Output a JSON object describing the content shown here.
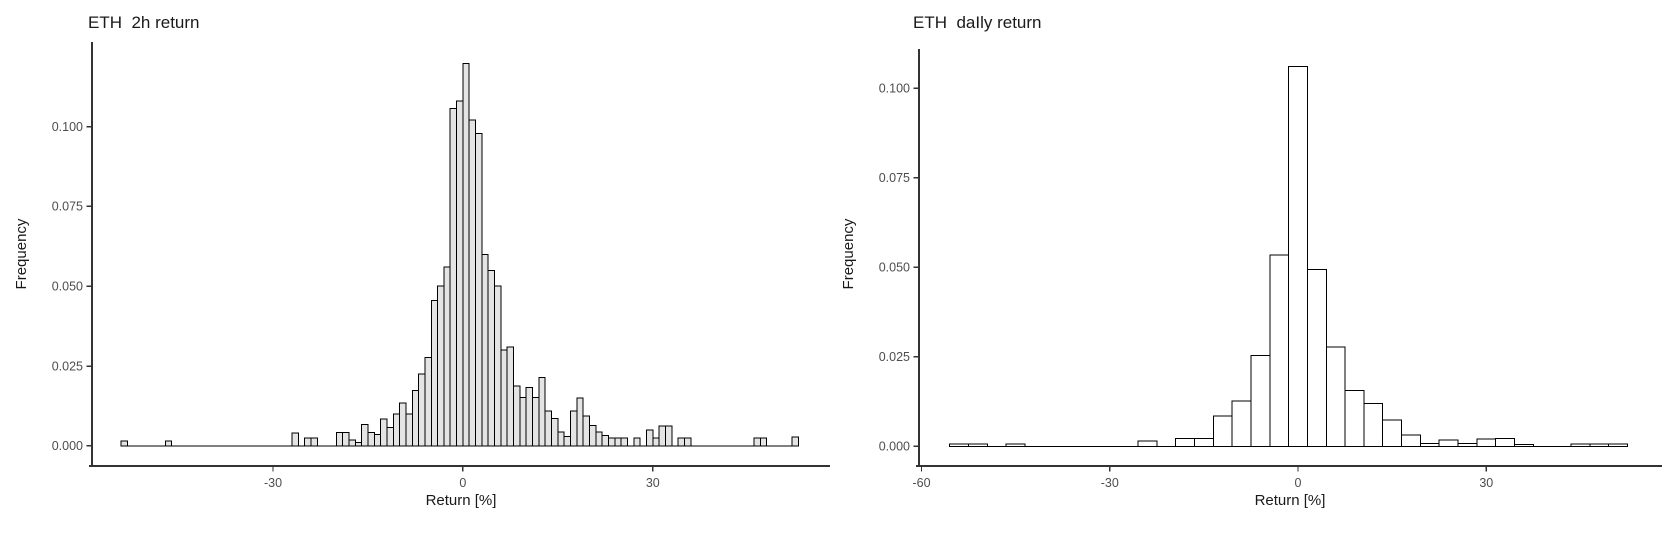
{
  "page": {
    "background": "#ffffff"
  },
  "styles": {
    "axis_line_color": "#333333",
    "tick_mark_color": "#333333",
    "tick_label_color": "#4d4d4d",
    "title_color": "#1a1a1a",
    "left_bar_fill": "#e4e4e4",
    "right_bar_fill": "#ffffff",
    "bar_stroke": "#000000"
  },
  "chart_data": [
    {
      "type": "bar",
      "subtype": "histogram",
      "title": "ETH  2h return",
      "xlabel": "Return [%]",
      "ylabel": "Frequency",
      "bin_width": 1,
      "xlim": [
        -58.6,
        58
      ],
      "ylim": [
        -0.0063,
        0.1265
      ],
      "grid": false,
      "legend": "none",
      "x_ticks": [
        {
          "v": -30,
          "label": "-30"
        },
        {
          "v": 0,
          "label": "0"
        },
        {
          "v": 30,
          "label": "30"
        }
      ],
      "y_ticks": [
        {
          "v": 0,
          "label": "0.000"
        },
        {
          "v": 0.025,
          "label": "0.025"
        },
        {
          "v": 0.05,
          "label": "0.050"
        },
        {
          "v": 0.075,
          "label": "0.075"
        },
        {
          "v": 0.1,
          "label": "0.100"
        }
      ],
      "baseline_span": [
        -54,
        53
      ],
      "bins": [
        [
          -54,
          0.0016
        ],
        [
          -47,
          0.0016
        ],
        [
          -27,
          0.0041
        ],
        [
          -25,
          0.0024
        ],
        [
          -24,
          0.0024
        ],
        [
          -20,
          0.0042
        ],
        [
          -19,
          0.0042
        ],
        [
          -18,
          0.0018
        ],
        [
          -17,
          0.0011
        ],
        [
          -16,
          0.0067
        ],
        [
          -15,
          0.0042
        ],
        [
          -14,
          0.0035
        ],
        [
          -13,
          0.0084
        ],
        [
          -12,
          0.0058
        ],
        [
          -11,
          0.01
        ],
        [
          -10,
          0.0135
        ],
        [
          -9,
          0.01
        ],
        [
          -8,
          0.0173
        ],
        [
          -7,
          0.0225
        ],
        [
          -6,
          0.0277
        ],
        [
          -5,
          0.0455
        ],
        [
          -4,
          0.05
        ],
        [
          -3,
          0.056
        ],
        [
          -2,
          0.1056
        ],
        [
          -1,
          0.108
        ],
        [
          0,
          0.1197
        ],
        [
          1,
          0.102
        ],
        [
          2,
          0.0979
        ],
        [
          3,
          0.06
        ],
        [
          4,
          0.055
        ],
        [
          5,
          0.05
        ],
        [
          6,
          0.03
        ],
        [
          7,
          0.031
        ],
        [
          8,
          0.0188
        ],
        [
          9,
          0.0152
        ],
        [
          10,
          0.0183
        ],
        [
          11,
          0.0152
        ],
        [
          12,
          0.0214
        ],
        [
          13,
          0.011
        ],
        [
          14,
          0.0085
        ],
        [
          15,
          0.0043
        ],
        [
          16,
          0.003
        ],
        [
          17,
          0.011
        ],
        [
          18,
          0.015
        ],
        [
          19,
          0.0093
        ],
        [
          20,
          0.0064
        ],
        [
          21,
          0.0043
        ],
        [
          22,
          0.0032
        ],
        [
          23,
          0.0025
        ],
        [
          24,
          0.0025
        ],
        [
          25,
          0.0025
        ],
        [
          27,
          0.0025
        ],
        [
          29,
          0.005
        ],
        [
          30,
          0.0025
        ],
        [
          31,
          0.0062
        ],
        [
          32,
          0.0062
        ],
        [
          34,
          0.0025
        ],
        [
          35,
          0.0025
        ],
        [
          46,
          0.0025
        ],
        [
          47,
          0.0025
        ],
        [
          52,
          0.0028
        ]
      ]
    },
    {
      "type": "bar",
      "subtype": "histogram",
      "title": "ETH  daIly return",
      "xlabel": "Return [%]",
      "ylabel": "Frequency",
      "bin_width": 3,
      "xlim": [
        -60.4,
        58
      ],
      "ylim": [
        -0.0055,
        0.111
      ],
      "grid": false,
      "legend": "none",
      "x_ticks": [
        {
          "v": -60,
          "label": "-60"
        },
        {
          "v": -30,
          "label": "-30"
        },
        {
          "v": 0,
          "label": "0"
        },
        {
          "v": 30,
          "label": "30"
        }
      ],
      "y_ticks": [
        {
          "v": 0,
          "label": "0.000"
        },
        {
          "v": 0.025,
          "label": "0.025"
        },
        {
          "v": 0.05,
          "label": "0.050"
        },
        {
          "v": 0.075,
          "label": "0.075"
        },
        {
          "v": 0.1,
          "label": "0.100"
        }
      ],
      "baseline_span": [
        -55.5,
        52.5
      ],
      "bins": [
        [
          -55.5,
          0.0006
        ],
        [
          -52.5,
          0.0006
        ],
        [
          -46.5,
          0.0006
        ],
        [
          -25.5,
          0.0015
        ],
        [
          -19.5,
          0.0022
        ],
        [
          -16.5,
          0.0022
        ],
        [
          -13.5,
          0.0085
        ],
        [
          -10.5,
          0.0127
        ],
        [
          -7.5,
          0.0254
        ],
        [
          -4.5,
          0.0534
        ],
        [
          -1.5,
          0.1061
        ],
        [
          1.5,
          0.0494
        ],
        [
          4.5,
          0.0277
        ],
        [
          7.5,
          0.0156
        ],
        [
          10.5,
          0.012
        ],
        [
          13.5,
          0.0073
        ],
        [
          16.5,
          0.0031
        ],
        [
          19.5,
          0.0008
        ],
        [
          22.5,
          0.0018
        ],
        [
          25.5,
          0.0008
        ],
        [
          28.5,
          0.002
        ],
        [
          31.5,
          0.0022
        ],
        [
          34.5,
          0.0005
        ],
        [
          43.5,
          0.0006
        ],
        [
          46.5,
          0.0006
        ],
        [
          49.5,
          0.0006
        ]
      ]
    }
  ]
}
